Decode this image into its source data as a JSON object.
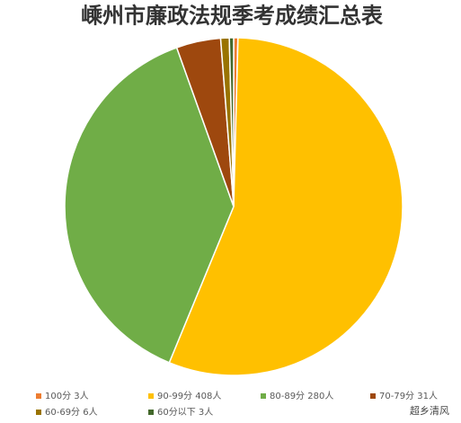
{
  "chart_data": {
    "type": "pie",
    "title": "嵊州市廉政法规季考成绩汇总表",
    "categories": [
      "100分 3人",
      "90-99分 408人",
      "80-89分 280人",
      "70-79分 31人",
      "60-69分 6人",
      "60分以下 3人"
    ],
    "values": [
      3,
      408,
      280,
      31,
      6,
      3
    ],
    "colors": [
      "#ed7d31",
      "#ffc000",
      "#70ad47",
      "#9e480e",
      "#997300",
      "#43682b"
    ],
    "legend": "bottom"
  },
  "watermark": "超乡清风"
}
